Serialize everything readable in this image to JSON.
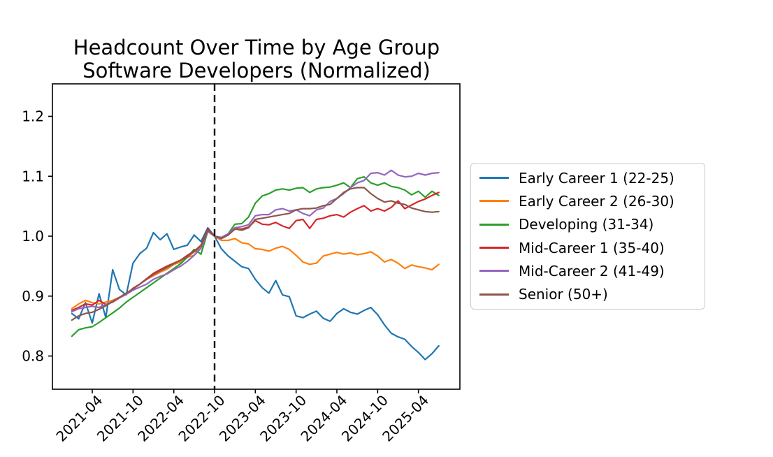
{
  "figure": {
    "background": "#ffffff",
    "text_color": "#000000"
  },
  "chart_data": {
    "type": "line",
    "title": "Headcount Over Time by Age Group",
    "subtitle": "Software Developers (Normalized)",
    "grid": false,
    "legend_position": "right",
    "xlabel": "",
    "ylabel": "",
    "ylim": [
      0.745,
      1.254
    ],
    "y_ticks": [
      "0.8",
      "0.9",
      "1.0",
      "1.1",
      "1.2"
    ],
    "x_tick_labels": [
      "2021-04",
      "2021-10",
      "2022-04",
      "2022-10",
      "2023-04",
      "2023-10",
      "2024-04",
      "2024-10",
      "2025-04"
    ],
    "x_tick_rotation_deg": 45,
    "event_line": {
      "x": "2022-10",
      "style": "dashed",
      "color": "#000000"
    },
    "x": [
      "2021-01",
      "2021-02",
      "2021-03",
      "2021-04",
      "2021-05",
      "2021-06",
      "2021-07",
      "2021-08",
      "2021-09",
      "2021-10",
      "2021-11",
      "2021-12",
      "2022-01",
      "2022-02",
      "2022-03",
      "2022-04",
      "2022-05",
      "2022-06",
      "2022-07",
      "2022-08",
      "2022-09",
      "2022-10",
      "2022-11",
      "2022-12",
      "2023-01",
      "2023-02",
      "2023-03",
      "2023-04",
      "2023-05",
      "2023-06",
      "2023-07",
      "2023-08",
      "2023-09",
      "2023-10",
      "2023-11",
      "2023-12",
      "2024-01",
      "2024-02",
      "2024-03",
      "2024-04",
      "2024-05",
      "2024-06",
      "2024-07",
      "2024-08",
      "2024-09",
      "2024-10",
      "2024-11",
      "2024-12",
      "2025-01",
      "2025-02",
      "2025-03",
      "2025-04",
      "2025-05",
      "2025-06",
      "2025-07"
    ],
    "series": [
      {
        "name": "Early Career 1 (22-25)",
        "color": "#1f77b4",
        "values": [
          0.871,
          0.862,
          0.889,
          0.855,
          0.904,
          0.864,
          0.944,
          0.911,
          0.902,
          0.955,
          0.971,
          0.98,
          1.006,
          0.994,
          1.004,
          0.978,
          0.982,
          0.985,
          1.002,
          0.991,
          1.014,
          1.0,
          0.979,
          0.967,
          0.958,
          0.949,
          0.946,
          0.928,
          0.914,
          0.905,
          0.926,
          0.902,
          0.899,
          0.867,
          0.864,
          0.87,
          0.875,
          0.863,
          0.858,
          0.871,
          0.879,
          0.873,
          0.87,
          0.876,
          0.881,
          0.869,
          0.852,
          0.838,
          0.832,
          0.828,
          0.816,
          0.806,
          0.794,
          0.804,
          0.817
        ]
      },
      {
        "name": "Early Career 2 (26-30)",
        "color": "#ff7f0e",
        "values": [
          0.879,
          0.887,
          0.893,
          0.889,
          0.887,
          0.89,
          0.893,
          0.898,
          0.905,
          0.912,
          0.92,
          0.928,
          0.934,
          0.94,
          0.945,
          0.953,
          0.957,
          0.965,
          0.968,
          0.985,
          1.01,
          1.0,
          0.993,
          0.993,
          0.996,
          0.989,
          0.987,
          0.979,
          0.978,
          0.975,
          0.98,
          0.983,
          0.978,
          0.968,
          0.957,
          0.953,
          0.955,
          0.967,
          0.97,
          0.973,
          0.97,
          0.972,
          0.969,
          0.971,
          0.974,
          0.967,
          0.957,
          0.961,
          0.955,
          0.946,
          0.952,
          0.949,
          0.947,
          0.944,
          0.953
        ]
      },
      {
        "name": "Developing (31-34)",
        "color": "#2ca02c",
        "values": [
          0.833,
          0.844,
          0.847,
          0.849,
          0.856,
          0.864,
          0.872,
          0.88,
          0.89,
          0.898,
          0.906,
          0.914,
          0.922,
          0.93,
          0.938,
          0.946,
          0.954,
          0.965,
          0.978,
          0.97,
          1.008,
          1.0,
          0.997,
          1.004,
          1.02,
          1.021,
          1.032,
          1.055,
          1.067,
          1.071,
          1.077,
          1.079,
          1.077,
          1.08,
          1.081,
          1.073,
          1.079,
          1.081,
          1.082,
          1.085,
          1.089,
          1.081,
          1.096,
          1.099,
          1.089,
          1.085,
          1.089,
          1.083,
          1.081,
          1.077,
          1.069,
          1.075,
          1.065,
          1.075,
          1.068
        ]
      },
      {
        "name": "Mid-Career 1 (35-40)",
        "color": "#d62728",
        "values": [
          0.876,
          0.881,
          0.887,
          0.885,
          0.893,
          0.886,
          0.89,
          0.897,
          0.903,
          0.913,
          0.92,
          0.929,
          0.938,
          0.944,
          0.95,
          0.955,
          0.96,
          0.968,
          0.975,
          0.985,
          1.012,
          1.0,
          0.996,
          1.002,
          1.012,
          1.012,
          1.015,
          1.026,
          1.02,
          1.019,
          1.023,
          1.017,
          1.013,
          1.026,
          1.028,
          1.013,
          1.028,
          1.03,
          1.034,
          1.036,
          1.032,
          1.04,
          1.046,
          1.051,
          1.042,
          1.046,
          1.042,
          1.048,
          1.059,
          1.046,
          1.052,
          1.058,
          1.062,
          1.068,
          1.073
        ]
      },
      {
        "name": "Mid-Career 2 (41-49)",
        "color": "#9467bd",
        "values": [
          0.874,
          0.879,
          0.881,
          0.883,
          0.881,
          0.886,
          0.891,
          0.897,
          0.903,
          0.91,
          0.915,
          0.92,
          0.928,
          0.933,
          0.937,
          0.944,
          0.95,
          0.958,
          0.968,
          0.98,
          1.008,
          1.0,
          0.998,
          1.004,
          1.014,
          1.016,
          1.019,
          1.034,
          1.036,
          1.036,
          1.044,
          1.046,
          1.042,
          1.044,
          1.038,
          1.034,
          1.044,
          1.047,
          1.058,
          1.063,
          1.071,
          1.081,
          1.089,
          1.093,
          1.105,
          1.106,
          1.102,
          1.11,
          1.102,
          1.099,
          1.1,
          1.105,
          1.102,
          1.105,
          1.106
        ]
      },
      {
        "name": "Senior (50+)",
        "color": "#8c564b",
        "values": [
          0.86,
          0.867,
          0.871,
          0.873,
          0.878,
          0.884,
          0.891,
          0.898,
          0.905,
          0.912,
          0.92,
          0.928,
          0.936,
          0.942,
          0.948,
          0.954,
          0.96,
          0.966,
          0.974,
          0.984,
          1.01,
          1.0,
          0.996,
          1.002,
          1.012,
          1.01,
          1.014,
          1.028,
          1.03,
          1.032,
          1.034,
          1.036,
          1.038,
          1.044,
          1.046,
          1.046,
          1.047,
          1.051,
          1.053,
          1.063,
          1.073,
          1.079,
          1.081,
          1.081,
          1.071,
          1.063,
          1.057,
          1.059,
          1.055,
          1.053,
          1.047,
          1.044,
          1.041,
          1.04,
          1.041
        ]
      }
    ]
  }
}
